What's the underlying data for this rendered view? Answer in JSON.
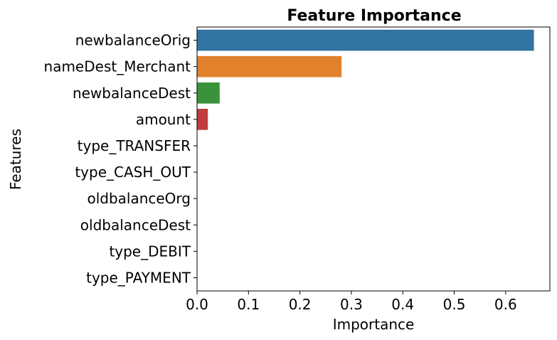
{
  "chart_data": {
    "type": "bar",
    "orientation": "horizontal",
    "title": "Feature Importance",
    "xlabel": "Importance",
    "ylabel": "Features",
    "xlim": [
      0,
      0.686
    ],
    "xticks": [
      0.0,
      0.1,
      0.2,
      0.3,
      0.4,
      0.5,
      0.6
    ],
    "xtick_labels": [
      "0.0",
      "0.1",
      "0.2",
      "0.3",
      "0.4",
      "0.5",
      "0.6"
    ],
    "categories": [
      "newbalanceOrig",
      "nameDest_Merchant",
      "newbalanceDest",
      "amount",
      "type_TRANSFER",
      "type_CASH_OUT",
      "oldbalanceOrg",
      "oldbalanceDest",
      "type_DEBIT",
      "type_PAYMENT"
    ],
    "values": [
      0.655,
      0.281,
      0.044,
      0.021,
      0.0,
      0.0,
      0.0,
      0.0,
      0.0,
      0.0
    ],
    "colors": [
      "#3274a1",
      "#e1812c",
      "#3a923a",
      "#c03d3e",
      "#9372b2",
      "#845b53",
      "#d684bd",
      "#7f7f7f",
      "#a9aa35",
      "#2eb1c2"
    ],
    "grid": false,
    "legend": "none"
  }
}
